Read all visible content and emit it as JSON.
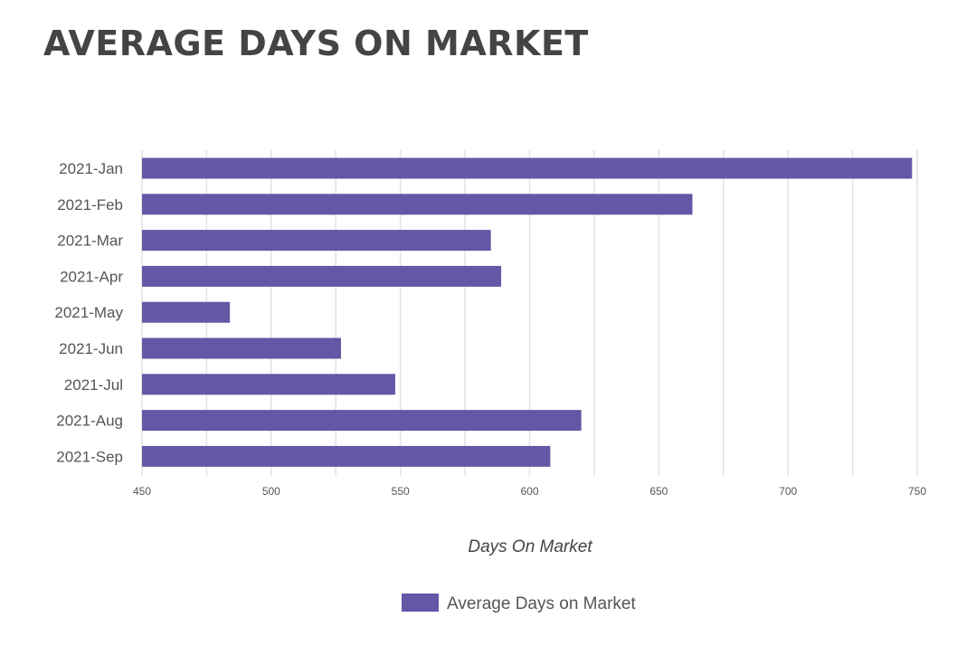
{
  "page": {
    "title": "AVERAGE DAYS ON MARKET"
  },
  "colors": {
    "bar": "#6556a6",
    "grid": "#e2e2e2",
    "text": "#555555",
    "title": "#444444"
  },
  "chart_data": {
    "type": "bar",
    "orientation": "horizontal",
    "categories": [
      "2021-Jan",
      "2021-Feb",
      "2021-Mar",
      "2021-Apr",
      "2021-May",
      "2021-Jun",
      "2021-Jul",
      "2021-Aug",
      "2021-Sep"
    ],
    "series": [
      {
        "name": "Average Days on Market",
        "values": [
          748,
          663,
          585,
          589,
          484,
          527,
          548,
          620,
          608
        ]
      }
    ],
    "xlabel": "Days On Market",
    "xlim": [
      450,
      750
    ],
    "xticks": [
      450,
      500,
      550,
      600,
      650,
      700,
      750
    ],
    "grid": true,
    "legend_position": "bottom-center"
  }
}
